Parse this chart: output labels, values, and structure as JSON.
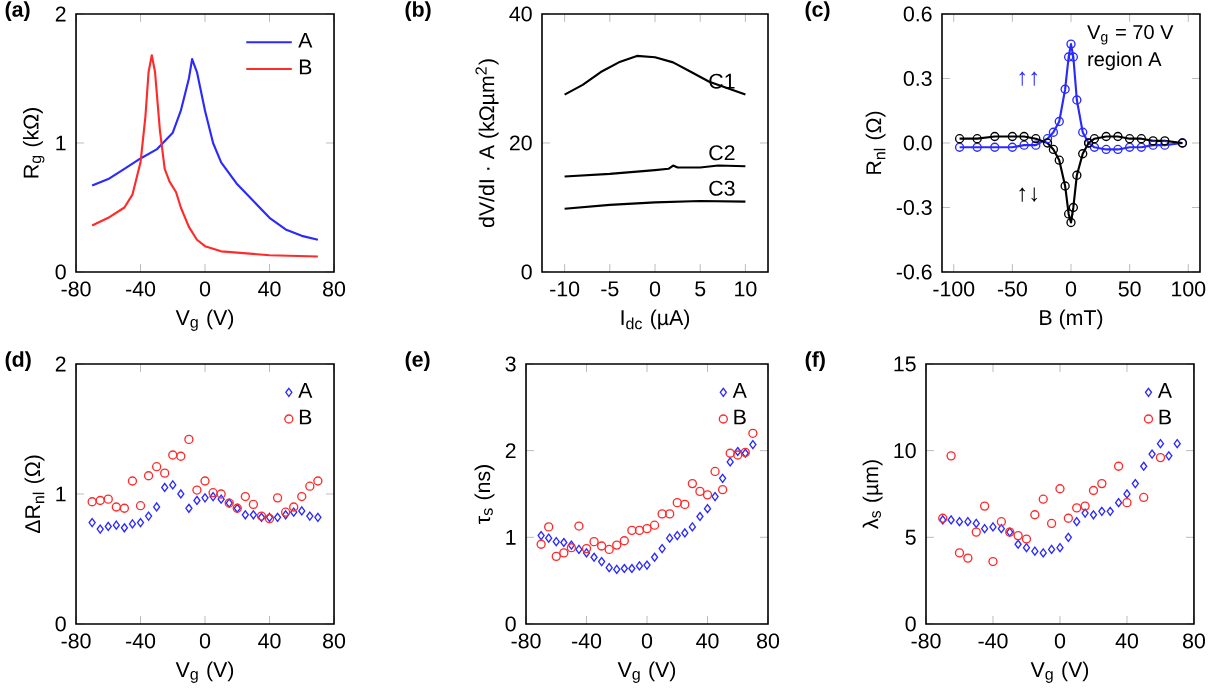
{
  "chart_data": [
    {
      "type": "line",
      "title": "(a)",
      "xlabel": "V$_{g}$ (V)",
      "ylabel": "R$_{g}$ (kΩ)",
      "xlim": [
        -80,
        80
      ],
      "xticks": [
        -80,
        -40,
        0,
        40,
        80
      ],
      "ylim": [
        0,
        2
      ],
      "yticks": [
        0,
        1,
        2
      ],
      "legend": "top right",
      "series": [
        {
          "name": "A",
          "color": "#2a2aff",
          "x": [
            -70,
            -60,
            -50,
            -40,
            -30,
            -20,
            -15,
            -10,
            -8,
            -5,
            0,
            5,
            10,
            20,
            30,
            40,
            50,
            60,
            70
          ],
          "values": [
            0.67,
            0.72,
            0.8,
            0.88,
            0.95,
            1.08,
            1.25,
            1.5,
            1.65,
            1.55,
            1.25,
            1.0,
            0.85,
            0.68,
            0.55,
            0.42,
            0.33,
            0.28,
            0.25
          ]
        },
        {
          "name": "B",
          "color": "#ff2a2a",
          "x": [
            -70,
            -60,
            -50,
            -45,
            -40,
            -37,
            -35,
            -33,
            -31,
            -28,
            -25,
            -22,
            -18,
            -15,
            -10,
            -5,
            0,
            10,
            20,
            40,
            70
          ],
          "values": [
            0.36,
            0.42,
            0.5,
            0.6,
            0.85,
            1.2,
            1.55,
            1.68,
            1.55,
            1.1,
            0.8,
            0.7,
            0.62,
            0.5,
            0.35,
            0.25,
            0.2,
            0.16,
            0.15,
            0.13,
            0.12
          ]
        }
      ]
    },
    {
      "type": "line",
      "title": "(b)",
      "xlabel": "I$_{dc}$ (µA)",
      "ylabel": "dV/dI · A (kΩµm$^{2}$)",
      "xlim": [
        -12.5,
        12.5
      ],
      "xticks": [
        -10,
        -5,
        0,
        5,
        10
      ],
      "ylim": [
        0,
        40
      ],
      "yticks": [
        0,
        20,
        40
      ],
      "series": [
        {
          "name": "C1",
          "color": "#000000",
          "x": [
            -10,
            -8,
            -6,
            -4,
            -2,
            0,
            2,
            4,
            6,
            8,
            10
          ],
          "values": [
            27.5,
            29,
            31,
            32.5,
            33.5,
            33.3,
            32.5,
            31,
            29.5,
            28.5,
            27.5
          ]
        },
        {
          "name": "C2",
          "color": "#000000",
          "x": [
            -10,
            -5,
            0,
            1.5,
            2,
            2.5,
            5,
            7,
            10
          ],
          "values": [
            14.8,
            15.2,
            15.8,
            16,
            16.5,
            16.2,
            16.2,
            16.5,
            16.4
          ]
        },
        {
          "name": "C3",
          "color": "#000000",
          "x": [
            -10,
            -5,
            0,
            5,
            10
          ],
          "values": [
            9.8,
            10.4,
            10.8,
            11,
            10.9
          ]
        }
      ]
    },
    {
      "type": "line",
      "title": "(c)",
      "xlabel": "B (mT)",
      "ylabel": "R$_{nl}$ (Ω)",
      "xlim": [
        -110,
        110
      ],
      "xticks": [
        -100,
        -50,
        0,
        50,
        100
      ],
      "ylim": [
        -0.6,
        0.6
      ],
      "yticks": [
        -0.6,
        -0.3,
        {
          "value": 0,
          "label": "0.0"
        },
        0.3,
        0.6
      ],
      "marker": "circle",
      "annotations": [
        "V$_{g}$ = 70 V",
        "region A"
      ],
      "series": [
        {
          "name": "↑↑",
          "color": "#2a2aff",
          "x": [
            -95,
            -80,
            -65,
            -50,
            -40,
            -30,
            -20,
            -15,
            -10,
            -5,
            -2,
            0,
            2,
            5,
            10,
            15,
            20,
            30,
            40,
            50,
            60,
            70,
            80,
            95
          ],
          "values": [
            -0.02,
            -0.02,
            -0.02,
            -0.02,
            -0.01,
            -0.01,
            0.02,
            0.05,
            0.1,
            0.25,
            0.4,
            0.46,
            0.4,
            0.2,
            0.05,
            0.0,
            -0.02,
            -0.03,
            -0.03,
            -0.02,
            -0.02,
            -0.01,
            -0.01,
            0.0
          ]
        },
        {
          "name": "↑↓",
          "color": "#000000",
          "x": [
            -95,
            -80,
            -65,
            -50,
            -40,
            -30,
            -20,
            -15,
            -10,
            -5,
            -2,
            0,
            2,
            5,
            10,
            15,
            20,
            30,
            40,
            50,
            60,
            70,
            80,
            95
          ],
          "values": [
            0.02,
            0.02,
            0.03,
            0.03,
            0.03,
            0.02,
            0.0,
            -0.03,
            -0.08,
            -0.2,
            -0.33,
            -0.37,
            -0.3,
            -0.15,
            -0.05,
            0.0,
            0.02,
            0.03,
            0.03,
            0.02,
            0.02,
            0.01,
            0.01,
            0.0
          ]
        }
      ]
    },
    {
      "type": "scatter",
      "title": "(d)",
      "xlabel": "V$_{g}$ (V)",
      "ylabel": "ΔR$_{nl}$ (Ω)",
      "xlim": [
        -80,
        80
      ],
      "xticks": [
        -80,
        -40,
        0,
        40,
        80
      ],
      "ylim": [
        0,
        2
      ],
      "yticks": [
        0,
        1,
        2
      ],
      "legend": "top right",
      "x": [
        -70,
        -65,
        -60,
        -55,
        -50,
        -45,
        -40,
        -35,
        -30,
        -25,
        -20,
        -15,
        -10,
        -5,
        0,
        5,
        10,
        15,
        20,
        25,
        30,
        35,
        40,
        45,
        50,
        55,
        60,
        65,
        70
      ],
      "series": [
        {
          "name": "A",
          "color": "#2a2aff",
          "marker": "diamond",
          "values": [
            0.78,
            0.73,
            0.75,
            0.76,
            0.74,
            0.77,
            0.78,
            0.83,
            0.9,
            1.05,
            1.07,
            1.0,
            0.89,
            0.95,
            0.97,
            0.98,
            0.96,
            0.93,
            0.89,
            0.84,
            0.84,
            0.82,
            0.82,
            0.82,
            0.84,
            0.86,
            0.87,
            0.83,
            0.82
          ]
        },
        {
          "name": "B",
          "color": "#ff2a2a",
          "marker": "circle",
          "values": [
            0.94,
            0.95,
            0.96,
            0.9,
            0.89,
            1.1,
            0.91,
            1.14,
            1.21,
            1.16,
            1.3,
            1.29,
            1.42,
            1.03,
            1.1,
            1.01,
            1.0,
            0.93,
            0.89,
            0.98,
            0.92,
            0.83,
            0.81,
            0.97,
            0.86,
            0.9,
            0.98,
            1.06,
            1.1
          ]
        }
      ]
    },
    {
      "type": "scatter",
      "title": "(e)",
      "xlabel": "V$_{g}$ (V)",
      "ylabel": "τ$_{s}$ (ns)",
      "xlim": [
        -80,
        80
      ],
      "xticks": [
        -80,
        -40,
        0,
        40,
        80
      ],
      "ylim": [
        0,
        3
      ],
      "yticks": [
        0,
        1,
        2,
        3
      ],
      "legend": "top right",
      "x": [
        -70,
        -65,
        -60,
        -55,
        -50,
        -45,
        -40,
        -35,
        -30,
        -25,
        -20,
        -15,
        -10,
        -5,
        0,
        5,
        10,
        15,
        20,
        25,
        30,
        35,
        40,
        45,
        50,
        55,
        60,
        65,
        70
      ],
      "series": [
        {
          "name": "A",
          "color": "#2a2aff",
          "marker": "diamond",
          "values": [
            1.02,
            0.99,
            0.95,
            0.94,
            0.91,
            0.86,
            0.82,
            0.77,
            0.72,
            0.65,
            0.63,
            0.64,
            0.64,
            0.67,
            0.68,
            0.77,
            0.87,
            0.99,
            1.02,
            1.05,
            1.12,
            1.24,
            1.33,
            1.47,
            1.68,
            1.87,
            1.99,
            1.97,
            2.07
          ]
        },
        {
          "name": "B",
          "color": "#ff2a2a",
          "marker": "circle",
          "values": [
            0.92,
            1.12,
            0.78,
            0.82,
            0.88,
            1.13,
            0.87,
            0.95,
            0.9,
            0.86,
            0.91,
            0.96,
            1.08,
            1.08,
            1.1,
            1.14,
            1.27,
            1.27,
            1.4,
            1.38,
            1.62,
            1.53,
            1.49,
            1.76,
            1.55,
            1.97,
            1.95,
            1.98,
            2.2
          ]
        }
      ]
    },
    {
      "type": "scatter",
      "title": "(f)",
      "xlabel": "V$_{g}$ (V)",
      "ylabel": "λ$_{s}$ (µm)",
      "xlim": [
        -80,
        80
      ],
      "xticks": [
        -80,
        -40,
        0,
        40,
        80
      ],
      "ylim": [
        0,
        15
      ],
      "yticks": [
        0,
        5,
        10,
        15
      ],
      "legend": "top right",
      "series": [
        {
          "name": "A",
          "color": "#2a2aff",
          "marker": "diamond",
          "x": [
            -70,
            -65,
            -60,
            -55,
            -50,
            -45,
            -40,
            -35,
            -30,
            -25,
            -20,
            -15,
            -10,
            -5,
            0,
            5,
            10,
            15,
            20,
            25,
            30,
            35,
            40,
            45,
            50,
            55,
            60,
            65,
            70
          ],
          "values": [
            6.0,
            6.0,
            5.9,
            5.9,
            5.8,
            5.5,
            5.6,
            5.5,
            5.3,
            4.6,
            4.4,
            4.2,
            4.1,
            4.3,
            4.4,
            5.0,
            5.9,
            6.4,
            6.3,
            6.5,
            6.5,
            7.0,
            7.5,
            8.1,
            9.1,
            9.8,
            10.4,
            9.7,
            10.4
          ]
        },
        {
          "name": "B",
          "color": "#ff2a2a",
          "marker": "circle",
          "x": [
            -70,
            -65,
            -60,
            -55,
            -50,
            -45,
            -40,
            -35,
            -30,
            -25,
            -20,
            -15,
            -10,
            -5,
            0,
            5,
            10,
            15,
            20,
            25,
            35,
            40,
            50,
            60
          ],
          "values": [
            6.1,
            9.7,
            4.1,
            3.8,
            5.3,
            6.8,
            3.6,
            5.9,
            5.3,
            5.1,
            4.9,
            6.3,
            7.2,
            5.8,
            7.8,
            6.1,
            6.7,
            6.8,
            7.7,
            8.1,
            9.1,
            7.0,
            7.3,
            9.6
          ]
        }
      ]
    }
  ]
}
